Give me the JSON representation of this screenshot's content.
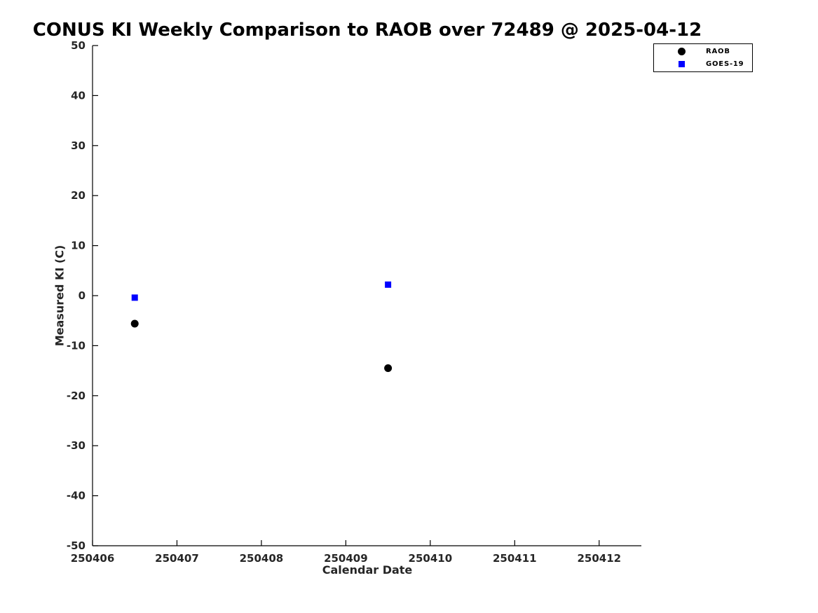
{
  "chart_data": {
    "type": "scatter",
    "title": "CONUS KI Weekly Comparison to RAOB over 72489 @ 2025-04-12",
    "xlabel": "Calendar Date",
    "ylabel": "Measured KI (C)",
    "xlim": [
      250406,
      250412.5
    ],
    "ylim": [
      -50,
      50
    ],
    "x_ticks": [
      250406,
      250407,
      250408,
      250409,
      250410,
      250411,
      250412
    ],
    "y_ticks": [
      -50,
      -40,
      -30,
      -20,
      -10,
      0,
      10,
      20,
      30,
      40,
      50
    ],
    "grid": false,
    "legend_position": "top-right",
    "series": [
      {
        "name": "RAOB",
        "marker": "circle",
        "color": "#000000",
        "size": 11,
        "points": [
          [
            250406.5,
            -5.6
          ],
          [
            250409.5,
            -14.5
          ]
        ]
      },
      {
        "name": "GOES-19",
        "marker": "square",
        "color": "#0000ff",
        "size": 9,
        "points": [
          [
            250406.5,
            -0.4
          ],
          [
            250409.5,
            2.2
          ]
        ]
      }
    ]
  }
}
